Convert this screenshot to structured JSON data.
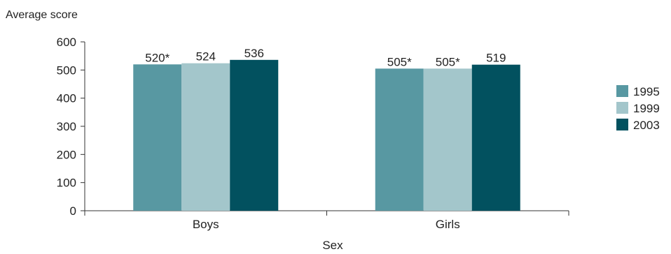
{
  "chart_data": {
    "type": "bar",
    "ylabel": "Average score",
    "xlabel": "Sex",
    "ylim": [
      0,
      600
    ],
    "yticks": [
      "0",
      "100",
      "200",
      "300",
      "400",
      "500",
      "600"
    ],
    "categories": [
      "Boys",
      "Girls"
    ],
    "series": [
      {
        "name": "1995",
        "color": "#5898a2",
        "values": [
          520,
          505
        ],
        "labels": [
          "520*",
          "505*"
        ]
      },
      {
        "name": "1999",
        "color": "#a3c6cb",
        "values": [
          524,
          505
        ],
        "labels": [
          "524",
          "505*"
        ]
      },
      {
        "name": "2003",
        "color": "#02515f",
        "values": [
          536,
          519
        ],
        "labels": [
          "536",
          "519"
        ]
      }
    ],
    "legend_position": "right",
    "grid": false
  }
}
